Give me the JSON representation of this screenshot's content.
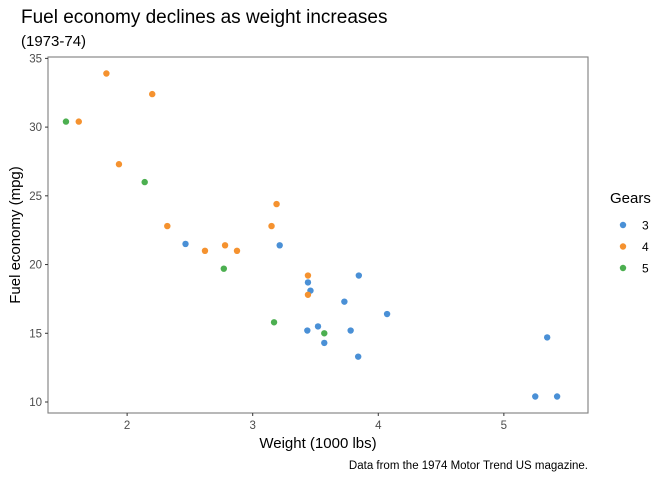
{
  "chart_data": {
    "type": "scatter",
    "title": "Fuel economy declines as weight increases",
    "subtitle": "(1973-74)",
    "caption": "Data from the 1974 Motor Trend US magazine.",
    "xlabel": "Weight (1000 lbs)",
    "ylabel": "Fuel economy (mpg)",
    "xlim": [
      1.37,
      5.67
    ],
    "ylim": [
      9.2,
      35.1
    ],
    "x_ticks": [
      2,
      3,
      4,
      5
    ],
    "x_tick_labels": [
      "2",
      "3",
      "4",
      "5"
    ],
    "y_ticks": [
      10,
      15,
      20,
      25,
      30,
      35
    ],
    "y_tick_labels": [
      "10",
      "15",
      "20",
      "25",
      "30",
      "35"
    ],
    "grid": false,
    "legend": {
      "title": "Gears",
      "placement": "right",
      "entries": [
        {
          "label": "3",
          "color": "#4A90D6"
        },
        {
          "label": "4",
          "color": "#F5922F"
        },
        {
          "label": "5",
          "color": "#4CAF50"
        }
      ]
    },
    "series": [
      {
        "name": "3",
        "color": "#4A90D6",
        "points": [
          [
            3.215,
            21.4
          ],
          [
            3.44,
            18.7
          ],
          [
            3.46,
            18.1
          ],
          [
            3.57,
            14.3
          ],
          [
            4.07,
            16.4
          ],
          [
            3.73,
            17.3
          ],
          [
            3.78,
            15.2
          ],
          [
            5.25,
            10.4
          ],
          [
            5.424,
            10.4
          ],
          [
            5.345,
            14.7
          ],
          [
            2.465,
            21.5
          ],
          [
            3.52,
            15.5
          ],
          [
            3.435,
            15.2
          ],
          [
            3.84,
            13.3
          ],
          [
            3.845,
            19.2
          ]
        ]
      },
      {
        "name": "4",
        "color": "#F5922F",
        "points": [
          [
            2.62,
            21.0
          ],
          [
            2.875,
            21.0
          ],
          [
            2.32,
            22.8
          ],
          [
            3.19,
            24.4
          ],
          [
            3.15,
            22.8
          ],
          [
            3.44,
            19.2
          ],
          [
            3.44,
            17.8
          ],
          [
            2.2,
            32.4
          ],
          [
            1.615,
            30.4
          ],
          [
            1.835,
            33.9
          ],
          [
            1.935,
            27.3
          ],
          [
            2.78,
            21.4
          ]
        ]
      },
      {
        "name": "5",
        "color": "#4CAF50",
        "points": [
          [
            2.14,
            26.0
          ],
          [
            1.513,
            30.4
          ],
          [
            3.17,
            15.8
          ],
          [
            2.77,
            19.7
          ],
          [
            3.57,
            15.0
          ]
        ]
      }
    ]
  }
}
